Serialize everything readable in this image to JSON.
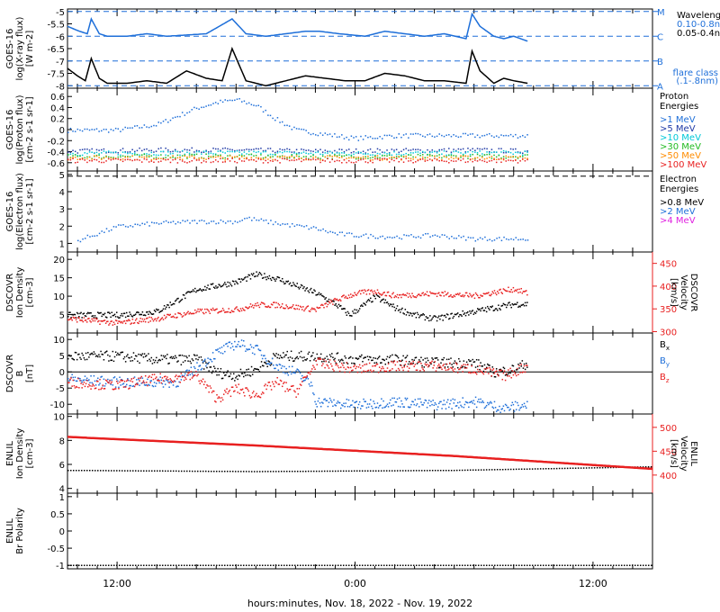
{
  "colors": {
    "black": "#000000",
    "blue": "#1e6fd9",
    "navy": "#1f3aa6",
    "cyan": "#00c8d8",
    "green": "#22bb22",
    "orange": "#ff8c00",
    "red": "#e82020",
    "magenta": "#e020e0"
  },
  "x_axis": {
    "label": "hours:minutes, Nov. 18, 2022 - Nov. 19, 2022",
    "range_hours": [
      -14.5,
      15
    ],
    "ticks": [
      {
        "h": -12,
        "label": "12:00"
      },
      {
        "h": 0,
        "label": "0:00"
      },
      {
        "h": 12,
        "label": "12:00"
      }
    ],
    "data_end_hour": 8.7
  },
  "chart_data": [
    {
      "id": "xray",
      "type": "line",
      "ylabel_lines": [
        "GOES-16",
        "log(X-ray flux)",
        "[W m-2]"
      ],
      "ylim": [
        -8.1,
        -4.9
      ],
      "yticks": [
        -8.0,
        -7.5,
        -7.0,
        -6.5,
        -6.0,
        -5.5,
        -5.0
      ],
      "levels": [
        {
          "value": -5,
          "letter": "M"
        },
        {
          "value": -6,
          "letter": "C"
        },
        {
          "value": -7,
          "letter": "B"
        },
        {
          "value": -8,
          "letter": "A"
        }
      ],
      "legend_title": "Wavelength",
      "series": [
        {
          "name": "0.10-0.8nm",
          "color": "#1e6fd9",
          "x": [
            -14.5,
            -13.9,
            -13.5,
            -13.3,
            -12.9,
            -12.5,
            -11.5,
            -10.5,
            -9.5,
            -8.5,
            -7.5,
            -6.2,
            -5.5,
            -4.5,
            -3.5,
            -2.5,
            -1.8,
            -0.8,
            0.5,
            1.5,
            2.5,
            3.5,
            4.5,
            5.6,
            5.9,
            6.3,
            7.0,
            7.5,
            8.0,
            8.7
          ],
          "y": [
            -5.6,
            -5.8,
            -5.9,
            -5.3,
            -5.9,
            -6.0,
            -6.0,
            -5.9,
            -6.0,
            -5.95,
            -5.9,
            -5.3,
            -5.9,
            -6.0,
            -5.9,
            -5.8,
            -5.8,
            -5.9,
            -6.0,
            -5.8,
            -5.9,
            -6.0,
            -5.9,
            -6.1,
            -5.1,
            -5.6,
            -6.0,
            -6.1,
            -6.0,
            -6.2
          ]
        },
        {
          "name": "0.05-0.4nm",
          "color": "#000000",
          "x": [
            -14.5,
            -14.0,
            -13.6,
            -13.3,
            -12.9,
            -12.5,
            -11.5,
            -10.5,
            -9.5,
            -8.5,
            -7.5,
            -6.7,
            -6.2,
            -5.5,
            -4.5,
            -3.5,
            -2.5,
            -1.5,
            -0.5,
            0.5,
            1.5,
            2.5,
            3.5,
            4.5,
            5.6,
            5.9,
            6.3,
            7.0,
            7.5,
            8.0,
            8.7
          ],
          "y": [
            -7.3,
            -7.6,
            -7.8,
            -6.9,
            -7.7,
            -7.9,
            -7.9,
            -7.8,
            -7.9,
            -7.4,
            -7.7,
            -7.8,
            -6.5,
            -7.8,
            -8.0,
            -7.8,
            -7.6,
            -7.7,
            -7.8,
            -7.8,
            -7.5,
            -7.6,
            -7.8,
            -7.8,
            -7.9,
            -6.6,
            -7.4,
            -7.9,
            -7.7,
            -7.8,
            -7.9
          ]
        }
      ],
      "annotations": [
        "flare class",
        "(.1-.8nm)"
      ]
    },
    {
      "id": "proton",
      "type": "scatter",
      "ylabel_lines": [
        "GOES-16",
        "log(Proton flux)",
        "[cm-2 s-1 sr-1]"
      ],
      "ylim": [
        -0.75,
        0.75
      ],
      "yticks": [
        -0.6,
        -0.4,
        -0.2,
        0.0,
        0.2,
        0.4,
        0.6
      ],
      "legend_title": "Proton Energies",
      "series": [
        {
          "name": ">1 MeV",
          "color": "#1e6fd9",
          "x": [
            -14.5,
            -12,
            -10,
            -8,
            -7,
            -6,
            -5,
            -4,
            -3,
            -2,
            -1,
            0,
            2,
            4,
            6,
            8.7
          ],
          "y": [
            0.0,
            0.0,
            0.1,
            0.4,
            0.5,
            0.55,
            0.45,
            0.2,
            0.0,
            -0.05,
            -0.1,
            -0.15,
            -0.1,
            -0.1,
            -0.1,
            -0.1
          ]
        },
        {
          "name": ">5 MeV",
          "color": "#1f3aa6",
          "x": [
            -14.5,
            -10,
            -6,
            -2,
            2,
            6,
            8.7
          ],
          "y": [
            -0.38,
            -0.36,
            -0.36,
            -0.38,
            -0.37,
            -0.36,
            -0.38
          ]
        },
        {
          "name": ">10 MeV",
          "color": "#00c8d8",
          "x": [
            -14.5,
            -8,
            0,
            8.7
          ],
          "y": [
            -0.42,
            -0.41,
            -0.42,
            -0.41
          ]
        },
        {
          "name": ">30 MeV",
          "color": "#22bb22",
          "x": [
            -14.5,
            -8,
            0,
            8.7
          ],
          "y": [
            -0.48,
            -0.47,
            -0.48,
            -0.47
          ]
        },
        {
          "name": ">50 MeV",
          "color": "#ff8c00",
          "x": [
            -14.5,
            -8,
            0,
            8.7
          ],
          "y": [
            -0.5,
            -0.5,
            -0.5,
            -0.5
          ]
        },
        {
          "name": ">100 MeV",
          "color": "#e82020",
          "x": [
            -14.5,
            -8,
            0,
            8.7
          ],
          "y": [
            -0.55,
            -0.55,
            -0.55,
            -0.55
          ]
        }
      ]
    },
    {
      "id": "electron",
      "type": "scatter",
      "ylabel_lines": [
        "GOES-16",
        "log(Electron flux)",
        "[cm-2 s-1 sr-1]"
      ],
      "ylim": [
        0.5,
        5.2
      ],
      "yticks": [
        1,
        2,
        3,
        4,
        5
      ],
      "ref_line": 4.9,
      "legend_title": "Electron Energies",
      "series": [
        {
          "name": ">0.8 MeV",
          "color": "#000000",
          "x": [],
          "y": []
        },
        {
          "name": ">2 MeV",
          "color": "#1e6fd9",
          "x": [
            -14,
            -12,
            -10,
            -8,
            -6,
            -5.5,
            -4,
            -2,
            -1,
            0,
            2,
            4,
            6,
            8.7
          ],
          "y": [
            1.2,
            2.0,
            2.2,
            2.3,
            2.3,
            2.5,
            2.2,
            1.9,
            1.6,
            1.5,
            1.4,
            1.5,
            1.3,
            1.3
          ]
        },
        {
          "name": ">4 MeV",
          "color": "#e020e0",
          "x": [],
          "y": []
        }
      ]
    },
    {
      "id": "dscovr-plasma",
      "type": "line",
      "ylabel_lines": [
        "DSCOVR",
        "Ion Density",
        "[cm-3]"
      ],
      "ylim": [
        0,
        22
      ],
      "yticks": [
        5,
        10,
        15,
        20
      ],
      "right_ylabel_lines": [
        "DSCOVR",
        "Velocity",
        "[km/s]"
      ],
      "right_ylim": [
        297,
        475
      ],
      "right_yticks": [
        300,
        350,
        400,
        450
      ],
      "series": [
        {
          "name": "density",
          "color": "#000000",
          "x": [
            -14.5,
            -12,
            -10,
            -9,
            -8,
            -7,
            -6,
            -5,
            -4,
            -3,
            -2.5,
            -2,
            -1,
            -0.3,
            0.5,
            1,
            2,
            3,
            4,
            5,
            6,
            7,
            8,
            8.7
          ],
          "y": [
            5,
            5,
            6,
            9,
            12,
            13,
            14,
            16,
            15,
            13,
            12,
            11,
            8,
            5,
            8,
            10,
            7,
            5,
            4,
            5,
            6,
            7,
            8,
            8
          ]
        },
        {
          "name": "velocity",
          "color": "#e82020",
          "x": [
            -14.5,
            -12,
            -10,
            -8,
            -6,
            -5,
            -4,
            -3,
            -2,
            -1,
            0,
            1,
            2,
            4,
            6,
            8,
            8.7
          ],
          "y": [
            330,
            320,
            330,
            345,
            350,
            360,
            360,
            355,
            350,
            370,
            385,
            390,
            380,
            385,
            380,
            395,
            385
          ]
        }
      ]
    },
    {
      "id": "dscovr-mag",
      "type": "line",
      "ylabel_lines": [
        "DSCOVR",
        "B",
        "[nT]"
      ],
      "ylim": [
        -13,
        12
      ],
      "yticks": [
        -10,
        -5,
        0,
        5,
        10
      ],
      "legend": [
        "Bx",
        "By",
        "Bz"
      ],
      "series": [
        {
          "name": "Bx",
          "color": "#000000",
          "x": [
            -14.5,
            -12,
            -10,
            -8,
            -7,
            -6,
            -5,
            -4,
            -2,
            0,
            2,
            4,
            6,
            7,
            8,
            8.7
          ],
          "y": [
            5,
            5,
            4,
            4,
            0,
            -1,
            1,
            5,
            5,
            4,
            4,
            3,
            3,
            0,
            1,
            3
          ]
        },
        {
          "name": "By",
          "color": "#1e6fd9",
          "x": [
            -14.5,
            -12,
            -9,
            -7,
            -6,
            -5,
            -4,
            -3,
            -2.2,
            -2,
            0,
            2,
            4,
            6,
            7.5,
            8.7
          ],
          "y": [
            -2,
            -3,
            -3,
            6,
            9,
            7,
            2,
            0,
            -4,
            -9,
            -10,
            -9,
            -10,
            -9,
            -11,
            -10
          ]
        },
        {
          "name": "Bz",
          "color": "#e82020",
          "x": [
            -14.5,
            -12,
            -10,
            -8,
            -7,
            -6,
            -5,
            -4,
            -3,
            -2,
            0,
            2,
            4,
            6,
            7.5,
            8.7
          ],
          "y": [
            -3,
            -4,
            -2,
            -1,
            -8,
            -5,
            -7,
            -3,
            -6,
            3,
            1,
            2,
            2,
            1,
            -1,
            2
          ]
        }
      ]
    },
    {
      "id": "enlil-plasma",
      "type": "line",
      "ylabel_lines": [
        "ENLIL",
        "Ion Density",
        "[cm-3]"
      ],
      "ylim": [
        3.6,
        10.2
      ],
      "yticks": [
        4,
        6,
        8,
        10
      ],
      "right_ylabel_lines": [
        "ENLIL",
        "Velocity",
        "[km/s]"
      ],
      "right_ylim": [
        362,
        528
      ],
      "right_yticks": [
        400,
        450,
        500
      ],
      "series": [
        {
          "name": "density",
          "color": "#000000",
          "x": [
            -14.5,
            -5,
            5,
            15
          ],
          "y": [
            5.5,
            5.4,
            5.5,
            5.8
          ]
        },
        {
          "name": "velocity",
          "color": "#e82020",
          "x": [
            -14.5,
            -5,
            5,
            15
          ],
          "y": [
            480,
            462,
            440,
            413
          ]
        }
      ]
    },
    {
      "id": "enlil-polarity",
      "type": "line",
      "ylabel_lines": [
        "ENLIL",
        "Br Polarity"
      ],
      "ylim": [
        -1.1,
        1.1
      ],
      "yticks": [
        -1.0,
        -0.5,
        0.0,
        0.5,
        1.0
      ],
      "series": [
        {
          "name": "polarity",
          "color": "#000000",
          "x": [
            -14.5,
            15
          ],
          "y": [
            -1.0,
            -1.0
          ]
        }
      ]
    }
  ]
}
